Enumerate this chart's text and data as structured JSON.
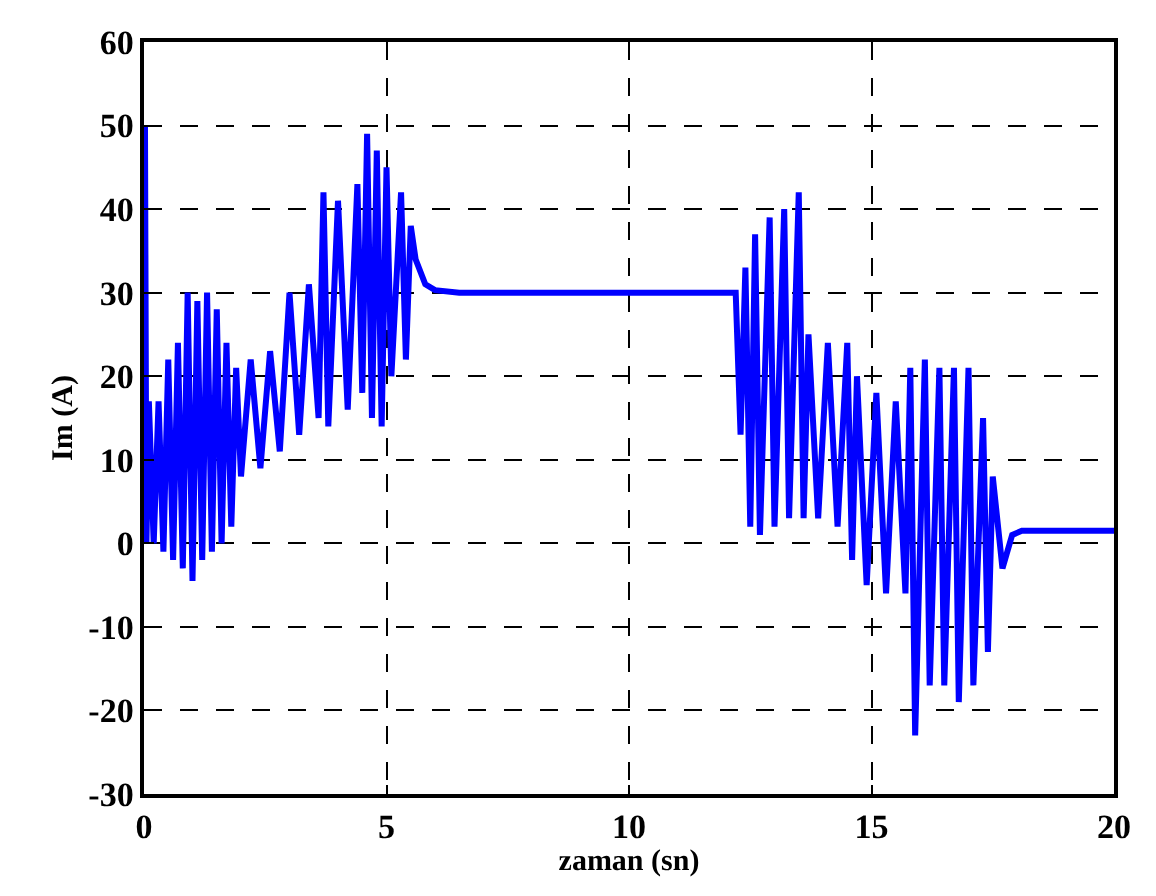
{
  "chart_data": {
    "type": "line",
    "xlabel": "zaman (sn)",
    "ylabel": "Im (A)",
    "xlim": [
      0,
      20
    ],
    "ylim": [
      -30,
      60
    ],
    "xticks": [
      0,
      5,
      10,
      15,
      20
    ],
    "yticks": [
      -30,
      -20,
      -10,
      0,
      10,
      20,
      30,
      40,
      50,
      60
    ],
    "grid": true,
    "marker": "none",
    "line_style": "solid",
    "series": [
      {
        "color": "#0000ff",
        "x": [
          0,
          0.02,
          0.05,
          0.1,
          0.2,
          0.3,
          0.4,
          0.5,
          0.6,
          0.7,
          0.8,
          0.9,
          1.0,
          1.1,
          1.2,
          1.3,
          1.4,
          1.5,
          1.6,
          1.7,
          1.8,
          1.9,
          2.0,
          2.2,
          2.4,
          2.6,
          2.8,
          3.0,
          3.2,
          3.4,
          3.6,
          3.7,
          3.8,
          4.0,
          4.2,
          4.4,
          4.5,
          4.6,
          4.7,
          4.8,
          4.9,
          5.0,
          5.1,
          5.3,
          5.4,
          5.5,
          5.6,
          5.8,
          6.0,
          6.5,
          12.2,
          12.3,
          12.4,
          12.5,
          12.6,
          12.7,
          12.9,
          13.0,
          13.2,
          13.3,
          13.5,
          13.6,
          13.7,
          13.9,
          14.1,
          14.3,
          14.5,
          14.6,
          14.7,
          14.9,
          15.1,
          15.3,
          15.5,
          15.7,
          15.8,
          15.9,
          16.1,
          16.2,
          16.4,
          16.5,
          16.7,
          16.8,
          17.0,
          17.1,
          17.3,
          17.4,
          17.5,
          17.7,
          17.9,
          18.1,
          20
        ],
        "values": [
          0,
          50,
          0,
          17,
          0,
          17,
          -1,
          22,
          -2,
          24,
          -3,
          30,
          -4.5,
          29,
          -2,
          30,
          -1,
          28,
          0,
          24,
          2,
          21,
          8,
          22,
          9,
          23,
          11,
          30,
          13,
          31,
          15,
          42,
          14,
          41,
          16,
          43,
          18,
          49,
          15,
          47,
          14,
          45,
          20,
          42,
          22,
          38,
          34,
          31,
          30.3,
          30,
          30,
          13,
          33,
          2,
          37,
          1,
          39,
          2,
          40,
          3,
          42,
          3,
          25,
          3,
          24,
          2,
          24,
          -2,
          20,
          -5,
          18,
          -6,
          17,
          -6,
          21,
          -23,
          22,
          -17,
          21,
          -17,
          21,
          -19,
          21,
          -17,
          15,
          -13,
          8,
          -3,
          1,
          1.5,
          1.5
        ]
      }
    ]
  }
}
